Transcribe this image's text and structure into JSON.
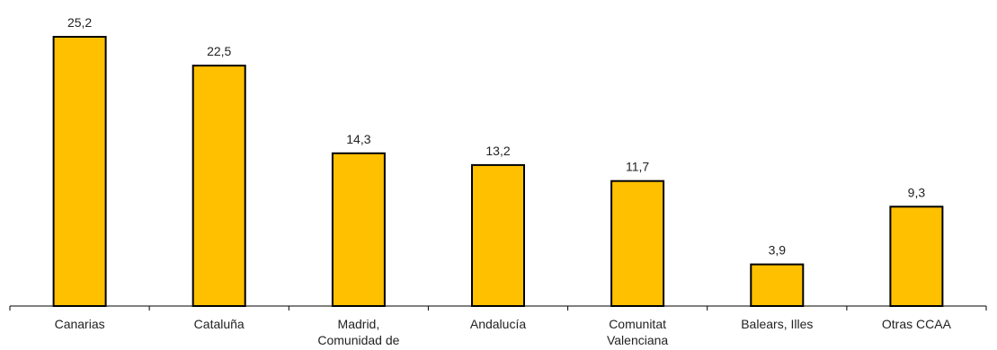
{
  "chart_data": {
    "type": "bar",
    "title": "",
    "xlabel": "",
    "ylabel": "",
    "categories": [
      [
        "Canarias"
      ],
      [
        "Cataluña"
      ],
      [
        "Madrid,",
        "Comunidad de"
      ],
      [
        "Andalucía"
      ],
      [
        "Comunitat",
        "Valenciana"
      ],
      [
        "Balears, Illes"
      ],
      [
        "Otras CCAA"
      ]
    ],
    "values": [
      25.2,
      22.5,
      14.3,
      13.2,
      11.7,
      3.9,
      9.3
    ],
    "value_labels": [
      "25,2",
      "22,5",
      "14,3",
      "13,2",
      "11,7",
      "3,9",
      "9,3"
    ],
    "ylim": [
      0,
      25.2
    ],
    "grid": false,
    "legend": "none",
    "colors": {
      "bar_fill": "#FFC000",
      "bar_stroke": "#000000",
      "axis": "#000000",
      "text": "#222222"
    }
  }
}
